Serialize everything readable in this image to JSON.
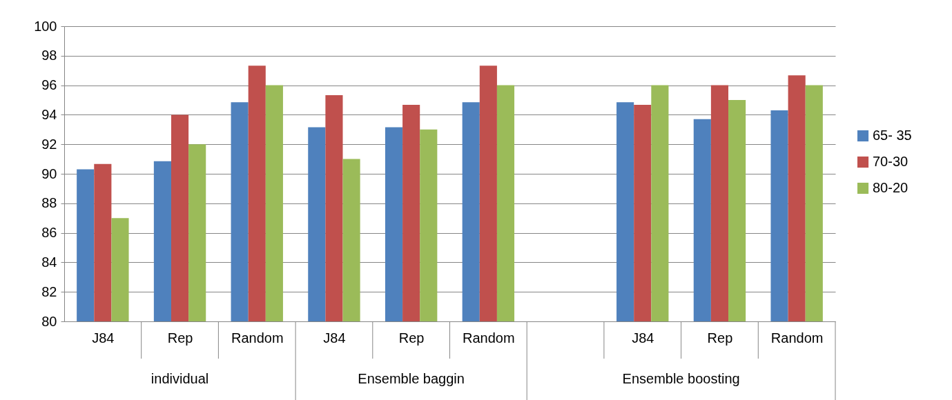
{
  "chart_data": {
    "type": "bar",
    "categories": [
      "J84",
      "Rep",
      "Random",
      "J84",
      "Rep",
      "Random",
      null,
      "J84",
      "Rep",
      "Random"
    ],
    "series": [
      {
        "name": "65- 35",
        "color": "#4f81bd",
        "values": [
          90.3,
          90.85,
          94.85,
          93.15,
          93.15,
          94.85,
          null,
          94.85,
          93.7,
          94.3
        ]
      },
      {
        "name": "70-30",
        "color": "#c0504d",
        "values": [
          90.67,
          94,
          97.33,
          95.33,
          94.67,
          97.33,
          null,
          94.67,
          96,
          96.67
        ]
      },
      {
        "name": "80-20",
        "color": "#9bbb59",
        "values": [
          87,
          92,
          96,
          91,
          93,
          96,
          null,
          96,
          95,
          96
        ]
      }
    ],
    "annotations": [
      "individual",
      "Ensemble baggin",
      "Ensemble boosting"
    ],
    "ylim": [
      80,
      100
    ],
    "yticks": [
      80,
      82,
      84,
      86,
      88,
      90,
      92,
      94,
      96,
      98,
      100
    ],
    "grid": "y",
    "legend": "right"
  }
}
